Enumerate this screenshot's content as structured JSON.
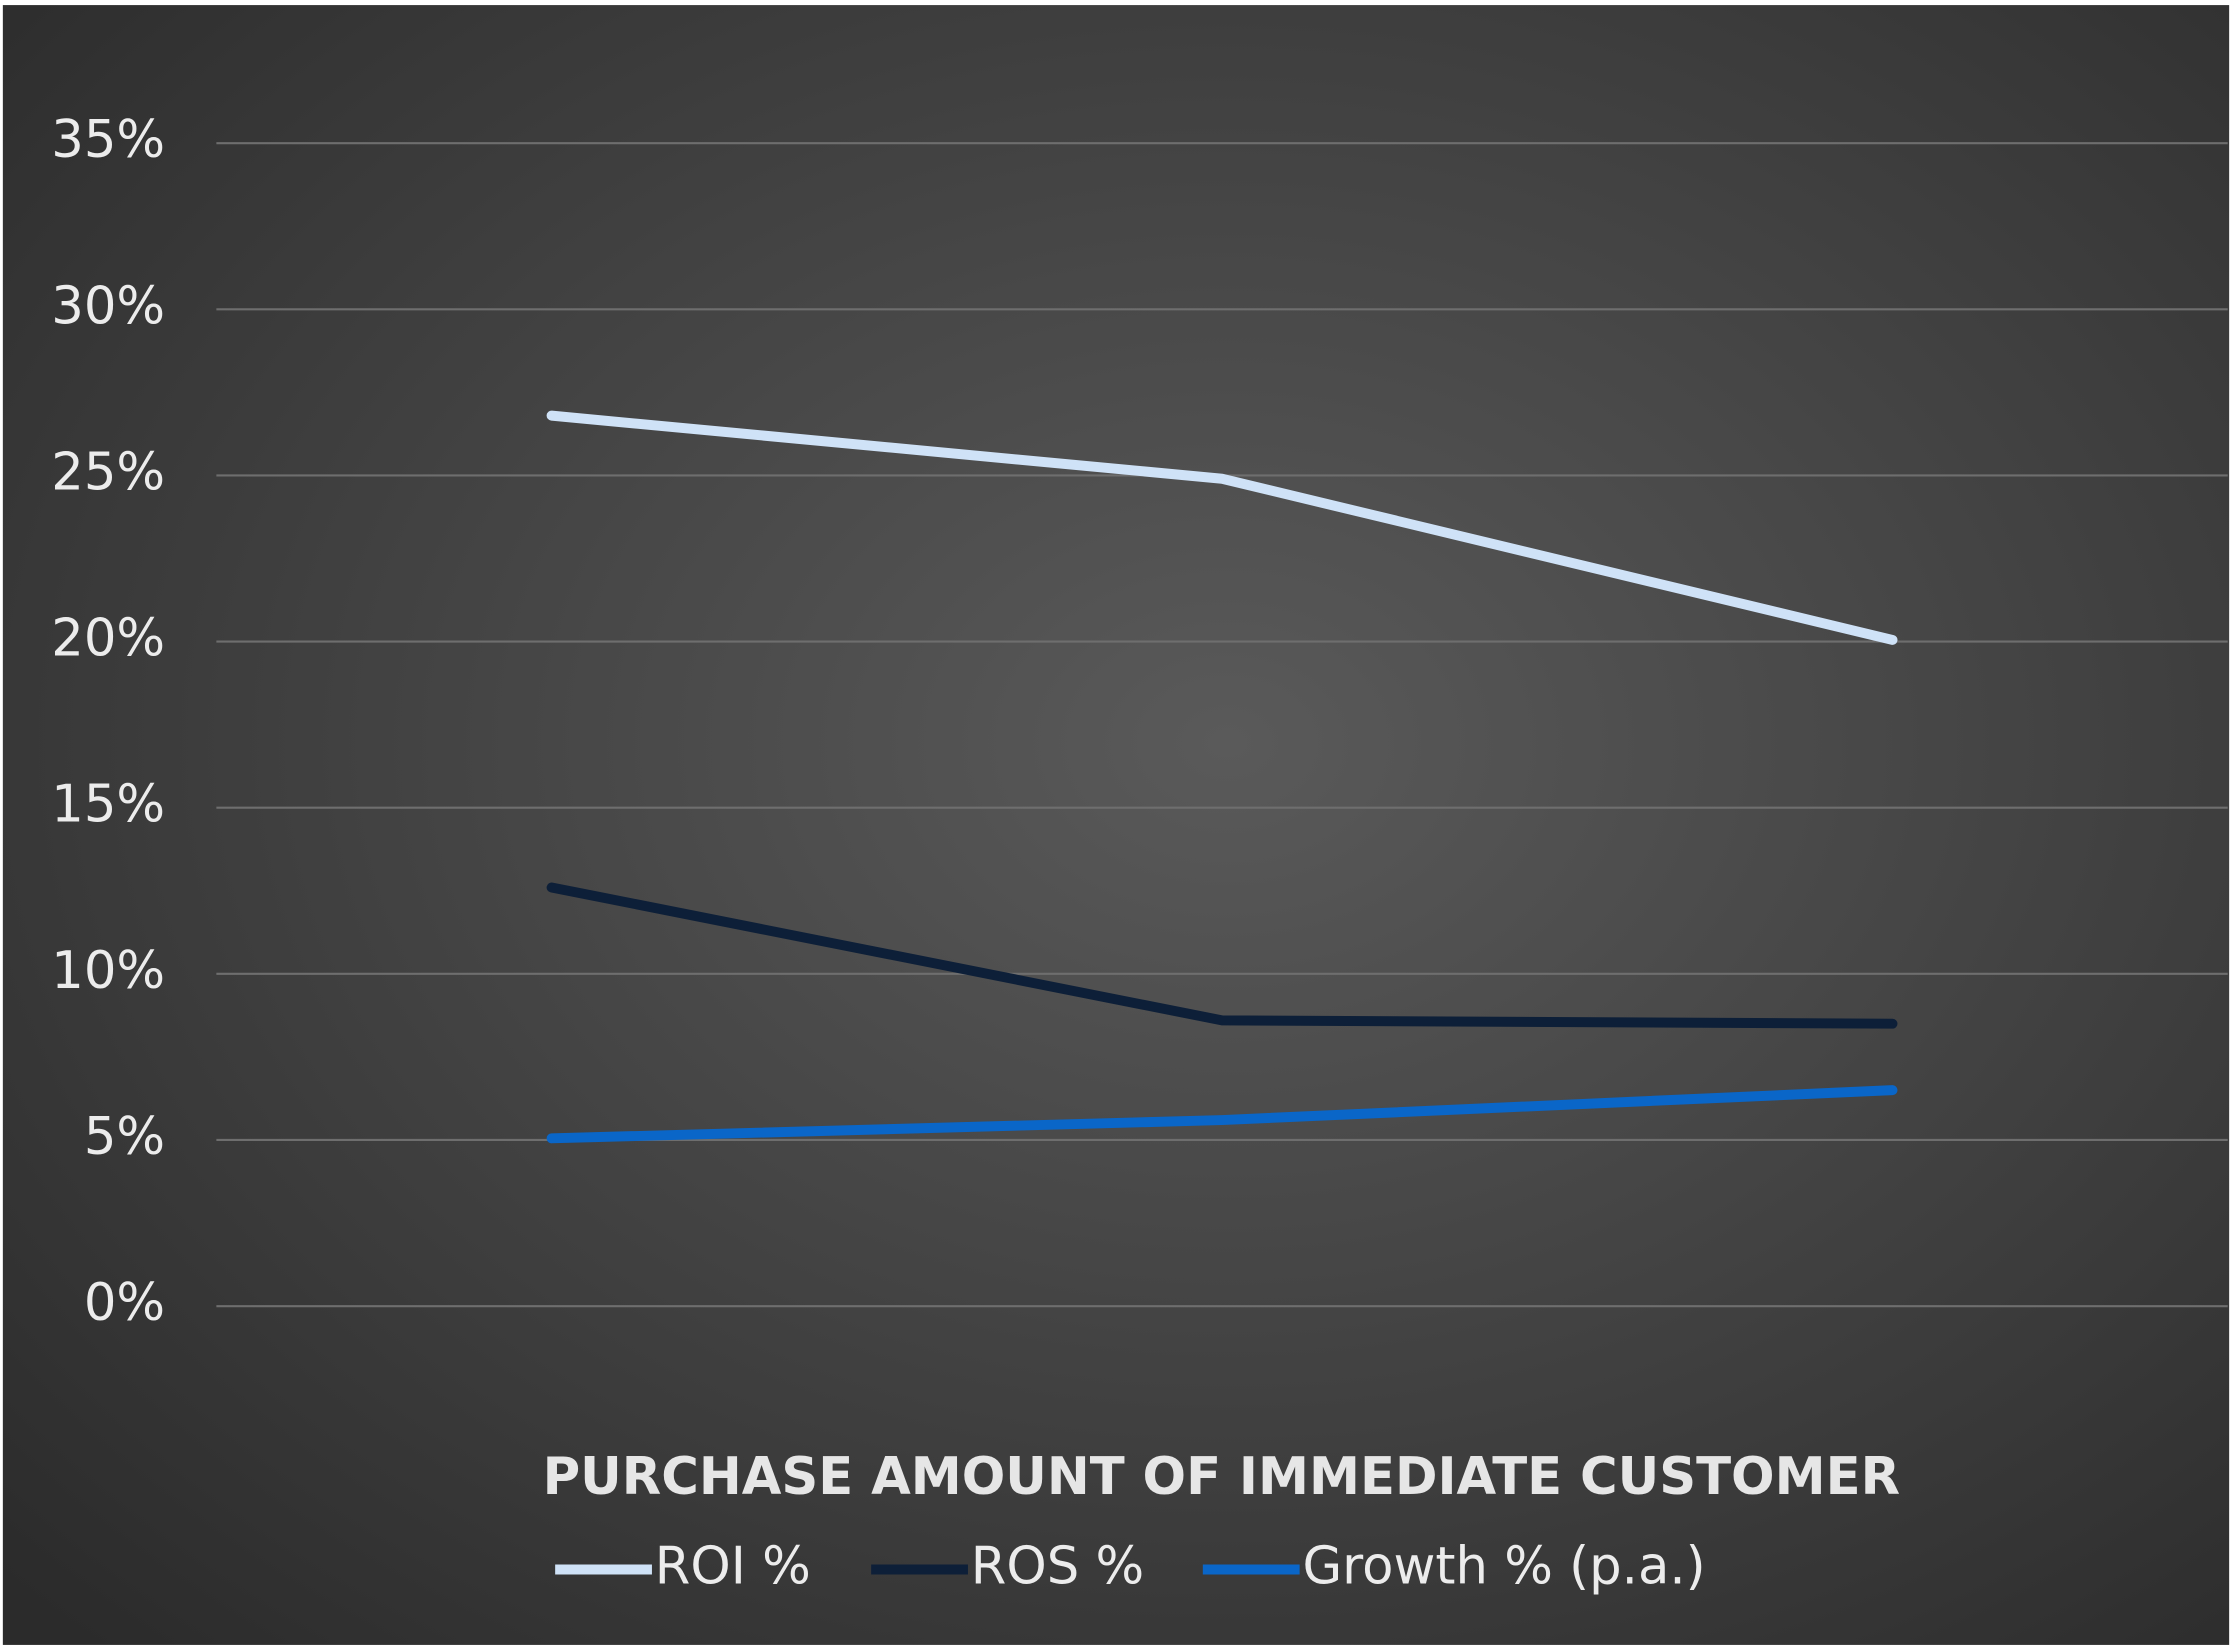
{
  "chart_data": {
    "type": "line",
    "x_label": "PURCHASE AMOUNT OF IMMEDIATE CUSTOMER",
    "categories": [
      null,
      null,
      null
    ],
    "series": [
      {
        "name": "ROI %",
        "color": "#cfe2f7",
        "values": [
          26.8,
          24.9,
          20.05
        ]
      },
      {
        "name": "ROS %",
        "color": "#0d1f38",
        "values": [
          12.6,
          8.6,
          8.5
        ]
      },
      {
        "name": "Growth % (p.a.)",
        "color": "#0a66c8",
        "values": [
          5.05,
          5.6,
          6.5
        ]
      }
    ],
    "ylim": [
      0,
      35
    ],
    "yticks": [
      {
        "value": 0,
        "label": "0%"
      },
      {
        "value": 5,
        "label": "5%"
      },
      {
        "value": 10,
        "label": "10%"
      },
      {
        "value": 15,
        "label": "15%"
      },
      {
        "value": 20,
        "label": "20%"
      },
      {
        "value": 25,
        "label": "25%"
      },
      {
        "value": 30,
        "label": "30%"
      },
      {
        "value": 35,
        "label": "35%"
      }
    ],
    "grid": true,
    "legend": "bottom"
  }
}
